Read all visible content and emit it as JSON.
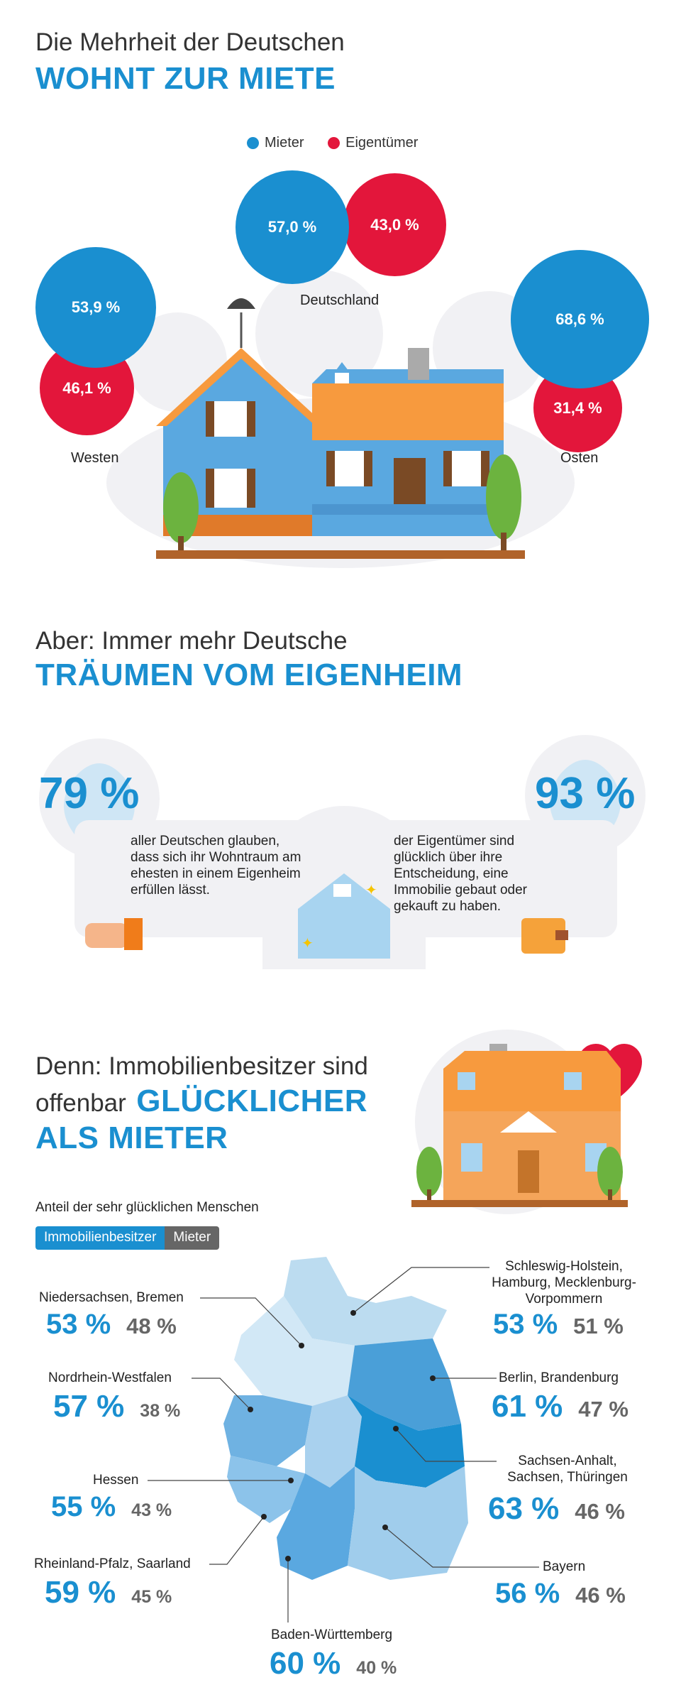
{
  "section1": {
    "title_light": "Die Mehrheit der Deutschen",
    "title_bold": "WOHNT ZUR MIETE",
    "legend": {
      "renter": "Mieter",
      "owner": "Eigentümer"
    },
    "colors": {
      "renter": "#1a8fd0",
      "owner": "#e3163b"
    },
    "regions": {
      "deutschland": {
        "label": "Deutschland",
        "renter": "57,0 %",
        "owner": "43,0 %"
      },
      "westen": {
        "label": "Westen",
        "renter": "53,9 %",
        "owner": "46,1 %"
      },
      "osten": {
        "label": "Osten",
        "renter": "68,6 %",
        "owner": "31,4 %"
      }
    }
  },
  "section2": {
    "title_light": "Aber: Immer mehr Deutsche",
    "title_bold": "TRÄUMEN VOM EIGENHEIM",
    "left": {
      "pct": "79 %",
      "text": "aller Deutschen glauben, dass sich ihr Wohntraum am ehesten in einem Eigenheim erfüllen lässt."
    },
    "right": {
      "pct": "93 %",
      "text": "der Eigentümer sind glücklich über ihre Entscheidung, eine Immobilie gebaut oder gekauft zu haben."
    }
  },
  "section3": {
    "title_line1": "Denn: Immobilienbesitzer sind",
    "title_line2_light": "offenbar",
    "title_line2_bold": "GLÜCKLICHER",
    "title_line3_bold": "ALS MIETER",
    "subtitle": "Anteil der sehr glücklichen Menschen",
    "toggle": {
      "owners": "Immobilienbesitzer",
      "renters": "Mieter"
    },
    "states": {
      "niedersachsen": {
        "label": "Niedersachsen, Bremen",
        "owners": "53 %",
        "renters": "48 %"
      },
      "nrw": {
        "label": "Nordrhein-Westfalen",
        "owners": "57 %",
        "renters": "38 %"
      },
      "hessen": {
        "label": "Hessen",
        "owners": "55 %",
        "renters": "43 %"
      },
      "rlp": {
        "label": "Rheinland-Pfalz, Saarland",
        "owners": "59 %",
        "renters": "45 %"
      },
      "bw": {
        "label": "Baden-Württemberg",
        "owners": "60 %",
        "renters": "40 %"
      },
      "sh": {
        "label": "Schleswig-Holstein,\nHamburg, Mecklenburg-\nVorpommern",
        "owners": "53 %",
        "renters": "51 %"
      },
      "berlin": {
        "label": "Berlin, Brandenburg",
        "owners": "61 %",
        "renters": "47 %"
      },
      "sachsen": {
        "label": "Sachsen-Anhalt,\nSachsen, Thüringen",
        "owners": "63 %",
        "renters": "46 %"
      },
      "bayern": {
        "label": "Bayern",
        "owners": "56 %",
        "renters": "46 %"
      }
    }
  }
}
